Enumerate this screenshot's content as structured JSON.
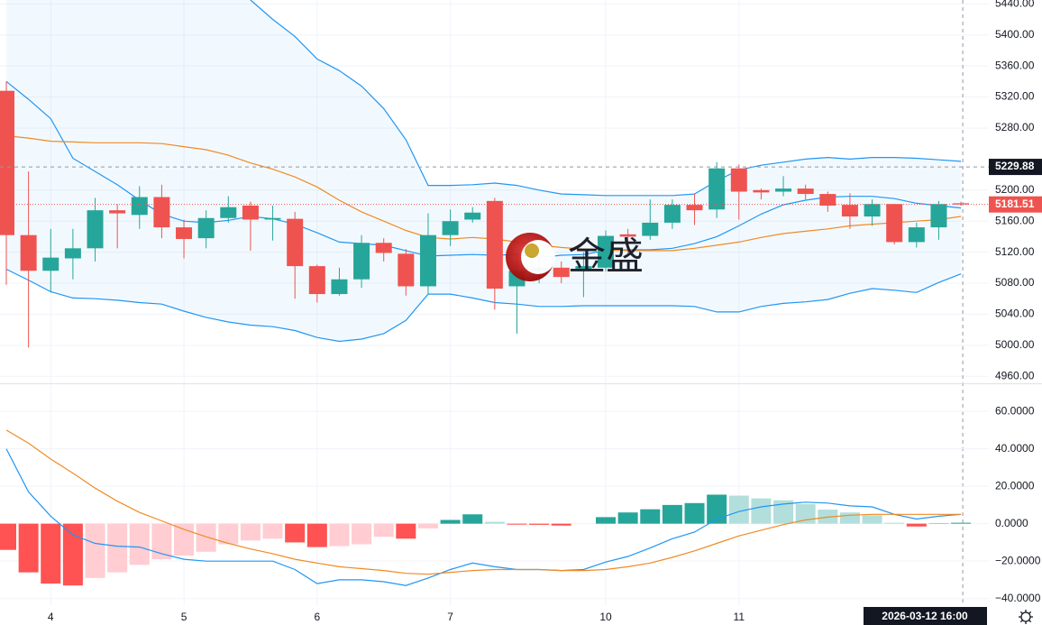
{
  "chart_data": [
    {
      "type": "candlestick",
      "categories": [
        null,
        null,
        "4",
        null,
        null,
        null,
        null,
        null,
        "5",
        null,
        null,
        null,
        null,
        null,
        "6",
        null,
        null,
        null,
        null,
        null,
        "7",
        null,
        null,
        null,
        null,
        null,
        null,
        "10",
        null,
        null,
        null,
        null,
        null,
        "11",
        null,
        null,
        null,
        null,
        null,
        null,
        null,
        null,
        null,
        null
      ],
      "open": [
        5328,
        5142,
        5096,
        5112,
        5125,
        5174,
        5168,
        5191,
        5152,
        5138,
        5164,
        5180,
        5162,
        5163,
        5102,
        5066,
        5085,
        5132,
        5118,
        5076,
        5142,
        5162,
        5186,
        5076,
        5096,
        5100,
        5098,
        5100,
        5143,
        5141,
        5158,
        5181,
        5175,
        5228,
        5200,
        5198,
        5202,
        5195,
        5181,
        5166,
        5182,
        5133,
        5152,
        5183
      ],
      "high": [
        5340,
        5224,
        5150,
        5150,
        5190,
        5182,
        5205,
        5207,
        5162,
        5174,
        5192,
        5185,
        5180,
        5172,
        5104,
        5100,
        5142,
        5138,
        5124,
        5170,
        5175,
        5178,
        5190,
        5120,
        5115,
        5108,
        5120,
        5148,
        5150,
        5188,
        5188,
        5195,
        5236,
        5233,
        5202,
        5218,
        5207,
        5198,
        5196,
        5188,
        5182,
        5158,
        5186,
        5185
      ],
      "low": [
        5078,
        4997,
        5068,
        5085,
        5108,
        5125,
        5150,
        5138,
        5112,
        5125,
        5158,
        5122,
        5135,
        5060,
        5055,
        5064,
        5074,
        5108,
        5064,
        5066,
        5128,
        5158,
        5046,
        5015,
        5080,
        5080,
        5062,
        5095,
        5118,
        5136,
        5150,
        5155,
        5164,
        5162,
        5188,
        5192,
        5188,
        5172,
        5150,
        5154,
        5130,
        5126,
        5136,
        5180
      ],
      "close": [
        5142,
        5096,
        5113,
        5125,
        5174,
        5170,
        5191,
        5152,
        5137,
        5164,
        5178,
        5162,
        5164,
        5102,
        5066,
        5085,
        5132,
        5119,
        5076,
        5142,
        5160,
        5171,
        5073,
        5096,
        5100,
        5088,
        5102,
        5141,
        5140,
        5158,
        5181,
        5174,
        5228,
        5198,
        5197,
        5202,
        5195,
        5180,
        5166,
        5182,
        5133,
        5152,
        5182,
        5181.51
      ],
      "up_color": "#26a69a",
      "down_color": "#ef5350",
      "band_fill": "rgba(33,150,243,0.06)",
      "series": [
        {
          "color": "#2196f3",
          "values": [
            null,
            null,
            null,
            null,
            null,
            null,
            null,
            null,
            null,
            null,
            null,
            5445,
            5420,
            5398,
            5369,
            5354,
            5334,
            5305,
            5265,
            5206,
            5206,
            5207,
            5209,
            5206,
            5200,
            5195,
            5194,
            5193,
            5193,
            5193,
            5193,
            5195,
            5212,
            5226,
            5232,
            5236,
            5240,
            5242,
            5240,
            5242,
            5242,
            5241,
            5239,
            5237
          ]
        },
        {
          "color": "#2196f3",
          "values": [
            5340,
            5317,
            5292,
            5241,
            5224,
            5207,
            5187,
            5169,
            5160,
            5158,
            5161,
            5166,
            5163,
            5156,
            5145,
            5133,
            5131,
            5129,
            5122,
            5115,
            5116,
            5117,
            5116,
            5117,
            5113,
            5116,
            5117,
            5122,
            5123,
            5123,
            5125,
            5131,
            5140,
            5154,
            5169,
            5181,
            5187,
            5191,
            5192,
            5192,
            5189,
            5183,
            5180,
            5177
          ]
        },
        {
          "color": "#2196f3",
          "values": [
            5098,
            5084,
            5069,
            5061,
            5060,
            5058,
            5055,
            5053,
            5044,
            5036,
            5030,
            5026,
            5024,
            5019,
            5010,
            5005,
            5008,
            5015,
            5032,
            5066,
            5066,
            5061,
            5055,
            5053,
            5050,
            5050,
            5051,
            5051,
            5051,
            5051,
            5051,
            5050,
            5043,
            5043,
            5050,
            5054,
            5056,
            5059,
            5067,
            5073,
            5071,
            5068,
            5081,
            5092
          ]
        },
        {
          "color": "#f08a24",
          "values": [
            5270,
            5267,
            5263,
            5262,
            5261,
            5261,
            5261,
            5260,
            5256,
            5252,
            5245,
            5235,
            5227,
            5217,
            5204,
            5187,
            5172,
            5160,
            5148,
            5139,
            5137,
            5139,
            5137,
            5133,
            5129,
            5126,
            5124,
            5123,
            5122,
            5122,
            5122,
            5125,
            5129,
            5133,
            5139,
            5144,
            5147,
            5150,
            5154,
            5156,
            5158,
            5160,
            5162,
            5166
          ]
        }
      ],
      "ylim": [
        4951,
        5445
      ],
      "yticks": [
        {
          "value": 5440,
          "label": "5440.00"
        },
        {
          "value": 5400,
          "label": "5400.00"
        },
        {
          "value": 5360,
          "label": "5360.00"
        },
        {
          "value": 5320,
          "label": "5320.00"
        },
        {
          "value": 5280,
          "label": "5280.00"
        },
        {
          "value": 5200,
          "label": "5200.00"
        },
        {
          "value": 5160,
          "label": "5160.00"
        },
        {
          "value": 5120,
          "label": "5120.00"
        },
        {
          "value": 5080,
          "label": "5080.00"
        },
        {
          "value": 5040,
          "label": "5040.00"
        },
        {
          "value": 5000,
          "label": "5000.00"
        },
        {
          "value": 4960,
          "label": "4960.00"
        }
      ],
      "grid": true,
      "last_price": 5181.51
    },
    {
      "type": "macd",
      "values": [
        -14,
        -26,
        -32,
        -33,
        -29,
        -26,
        -22,
        -19,
        -17,
        -15,
        -11,
        -9,
        -8,
        -10,
        -12.5,
        -12,
        -11,
        -7,
        -8,
        -2.5,
        2,
        5,
        1,
        -0.5,
        -0.6,
        -1,
        0,
        3.5,
        6,
        7.7,
        10,
        11,
        15.5,
        15,
        13.5,
        12.5,
        10.5,
        7.5,
        6,
        4.5,
        0.5,
        -1.5,
        0.2,
        0.5
      ],
      "colors": {
        "up_strong": "#26a69a",
        "up_weak": "#b2dfdb",
        "down_strong": "#ff5252",
        "down_weak": "#ffcdd2"
      },
      "series": [
        {
          "color": "#2196f3",
          "values": [
            40,
            17,
            4,
            -6,
            -10.5,
            -12,
            -12.5,
            -16,
            -19,
            -20,
            -20,
            -20,
            -20,
            -24.5,
            -32,
            -30,
            -30,
            -31,
            -33,
            -29,
            -24.5,
            -21,
            -23,
            -24.5,
            -24.5,
            -25,
            -24.5,
            -20.5,
            -17.5,
            -13,
            -8,
            -4.5,
            2.5,
            6.5,
            9,
            10.5,
            11.5,
            11,
            9.5,
            9,
            5,
            2.5,
            4,
            5
          ]
        },
        {
          "color": "#f08a24",
          "values": [
            50,
            43,
            34.5,
            27,
            19,
            12,
            6,
            1.5,
            -3,
            -7,
            -10.5,
            -13.5,
            -16,
            -19,
            -21,
            -23,
            -24,
            -25,
            -26.5,
            -27,
            -26,
            -25,
            -24.5,
            -24.5,
            -24.5,
            -25,
            -25,
            -24.5,
            -23,
            -21,
            -18,
            -14.5,
            -10.5,
            -6.5,
            -3.5,
            -0.5,
            2,
            3.5,
            4.5,
            5,
            5,
            5,
            5,
            5
          ]
        }
      ],
      "ylim": [
        -44,
        74.5
      ],
      "yticks": [
        {
          "value": 60,
          "label": "60.0000"
        },
        {
          "value": 40,
          "label": "40.0000"
        },
        {
          "value": 20,
          "label": "20.0000"
        },
        {
          "value": 0,
          "label": "0.0000"
        },
        {
          "value": -20,
          "label": "−20.0000"
        },
        {
          "value": -40,
          "label": "−40.0000"
        }
      ],
      "grid": true
    }
  ],
  "crosshair": {
    "price": 5229.88,
    "time": "2026-03-12 16:00"
  },
  "watermark": "金盛"
}
